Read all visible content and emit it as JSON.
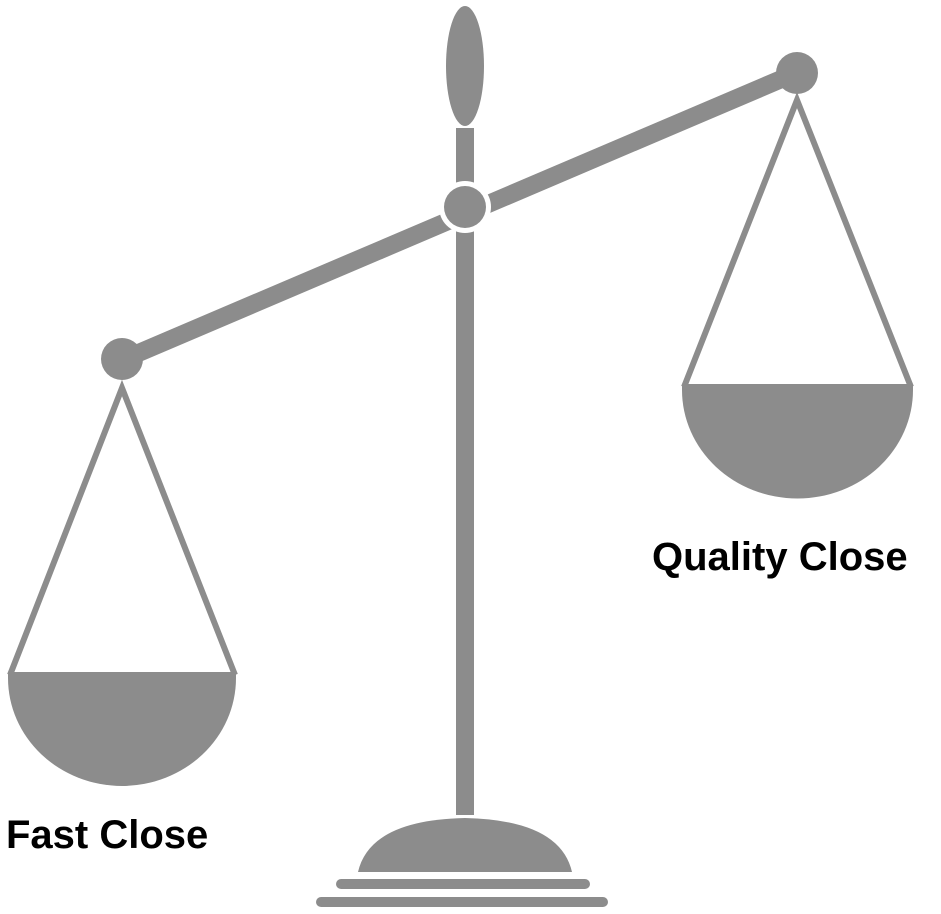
{
  "labels": {
    "left": "Fast Close",
    "right": "Quality Close"
  }
}
